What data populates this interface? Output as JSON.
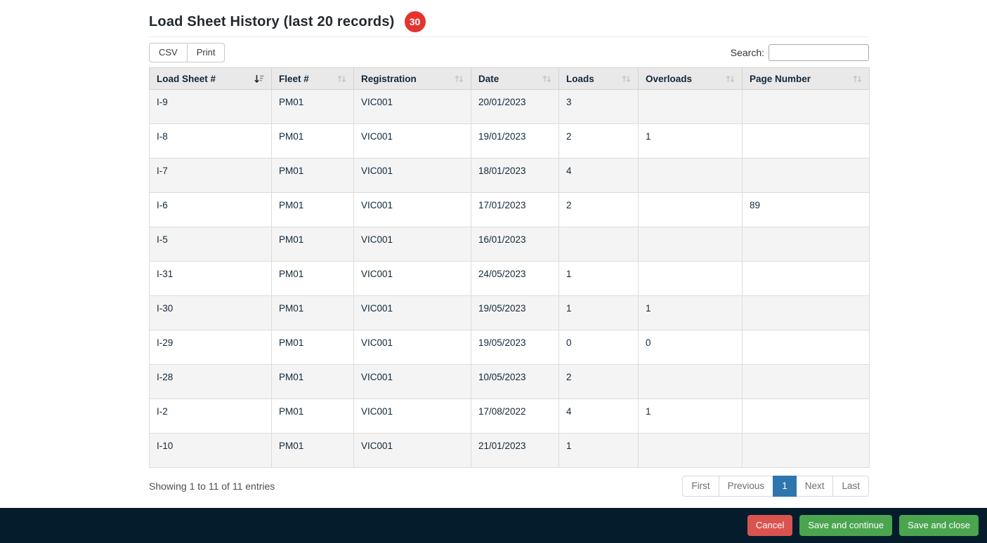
{
  "page": {
    "title": "Load Sheet History (last 20 records)",
    "badge": "30"
  },
  "toolbar": {
    "csv_label": "CSV",
    "print_label": "Print",
    "search_label": "Search:",
    "search_value": ""
  },
  "table": {
    "columns": [
      {
        "label": "Load Sheet #",
        "sort": "desc"
      },
      {
        "label": "Fleet #",
        "sort": "none"
      },
      {
        "label": "Registration",
        "sort": "none"
      },
      {
        "label": "Date",
        "sort": "none"
      },
      {
        "label": "Loads",
        "sort": "none"
      },
      {
        "label": "Overloads",
        "sort": "none"
      },
      {
        "label": "Page Number",
        "sort": "none"
      }
    ],
    "rows": [
      [
        "I-9",
        "PM01",
        "VIC001",
        "20/01/2023",
        "3",
        "",
        ""
      ],
      [
        "I-8",
        "PM01",
        "VIC001",
        "19/01/2023",
        "2",
        "1",
        ""
      ],
      [
        "I-7",
        "PM01",
        "VIC001",
        "18/01/2023",
        "4",
        "",
        ""
      ],
      [
        "I-6",
        "PM01",
        "VIC001",
        "17/01/2023",
        "2",
        "",
        "89"
      ],
      [
        "I-5",
        "PM01",
        "VIC001",
        "16/01/2023",
        "",
        "",
        ""
      ],
      [
        "I-31",
        "PM01",
        "VIC001",
        "24/05/2023",
        "1",
        "",
        ""
      ],
      [
        "I-30",
        "PM01",
        "VIC001",
        "19/05/2023",
        "1",
        "1",
        ""
      ],
      [
        "I-29",
        "PM01",
        "VIC001",
        "19/05/2023",
        "0",
        "0",
        ""
      ],
      [
        "I-28",
        "PM01",
        "VIC001",
        "10/05/2023",
        "2",
        "",
        ""
      ],
      [
        "I-2",
        "PM01",
        "VIC001",
        "17/08/2022",
        "4",
        "1",
        ""
      ],
      [
        "I-10",
        "PM01",
        "VIC001",
        "21/01/2023",
        "1",
        "",
        ""
      ]
    ]
  },
  "table_footer": {
    "showing_text": "Showing 1 to 11 of 11 entries",
    "pagination": [
      "First",
      "Previous",
      "1",
      "Next",
      "Last"
    ],
    "active_page": "1"
  },
  "footer_bar": {
    "cancel_label": "Cancel",
    "save_continue_label": "Save and continue",
    "save_close_label": "Save and close"
  },
  "colors": {
    "badge_red": "#e3342f",
    "text_navy": "#12283a",
    "footer_navy": "#051c2c",
    "active_page_blue": "#2e76ad",
    "cancel_red": "#d9534f",
    "save_green": "#4aa54e"
  }
}
